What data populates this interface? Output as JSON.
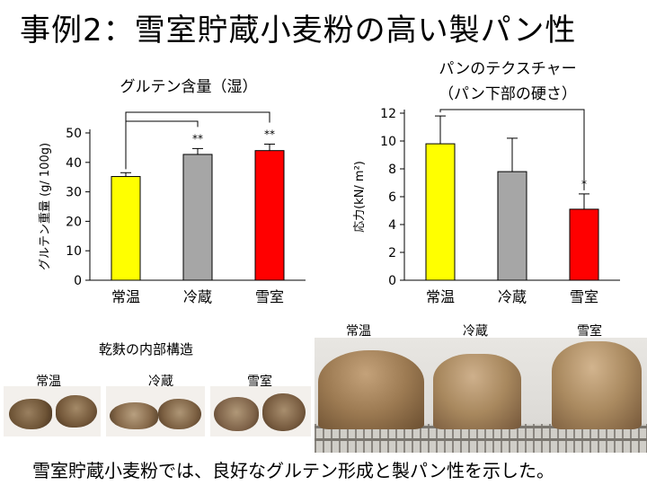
{
  "title": "事例2：雪室貯蔵小麦粉の高い製パン性",
  "chart_data": [
    {
      "type": "bar",
      "title": "グルテン含量（湿）",
      "ylabel": "グルテン重量 (g/ 100g)",
      "categories": [
        "常温",
        "冷蔵",
        "雪室"
      ],
      "values": [
        35.2,
        42.7,
        44.0
      ],
      "errors": [
        1.3,
        2.0,
        2.2
      ],
      "annotations": [
        "",
        "**",
        "**"
      ],
      "ylim": [
        0,
        50
      ],
      "yticks": [
        0,
        10,
        20,
        30,
        40,
        50
      ],
      "colors": [
        "#ffff00",
        "#a6a6a6",
        "#ff0000"
      ]
    },
    {
      "type": "bar",
      "title": "パンのテクスチャー",
      "subtitle": "（パン下部の硬さ）",
      "ylabel": "応力(kN/ m²)",
      "categories": [
        "常温",
        "冷蔵",
        "雪室"
      ],
      "values": [
        9.8,
        7.8,
        5.1
      ],
      "errors": [
        2.0,
        2.4,
        1.1
      ],
      "annotations": [
        "",
        "",
        "*"
      ],
      "ylim": [
        0,
        12
      ],
      "yticks": [
        0,
        2,
        4,
        6,
        8,
        10,
        12
      ],
      "colors": [
        "#ffff00",
        "#a6a6a6",
        "#ff0000"
      ]
    }
  ],
  "crumb_section": {
    "title": "乾麩の内部構造",
    "labels": [
      "常温",
      "冷蔵",
      "雪室"
    ]
  },
  "bread_section": {
    "labels": [
      "常温",
      "冷蔵",
      "雪室"
    ]
  },
  "conclusion": "雪室貯蔵小麦粉では、良好なグルテン形成と製パン性を示した。"
}
